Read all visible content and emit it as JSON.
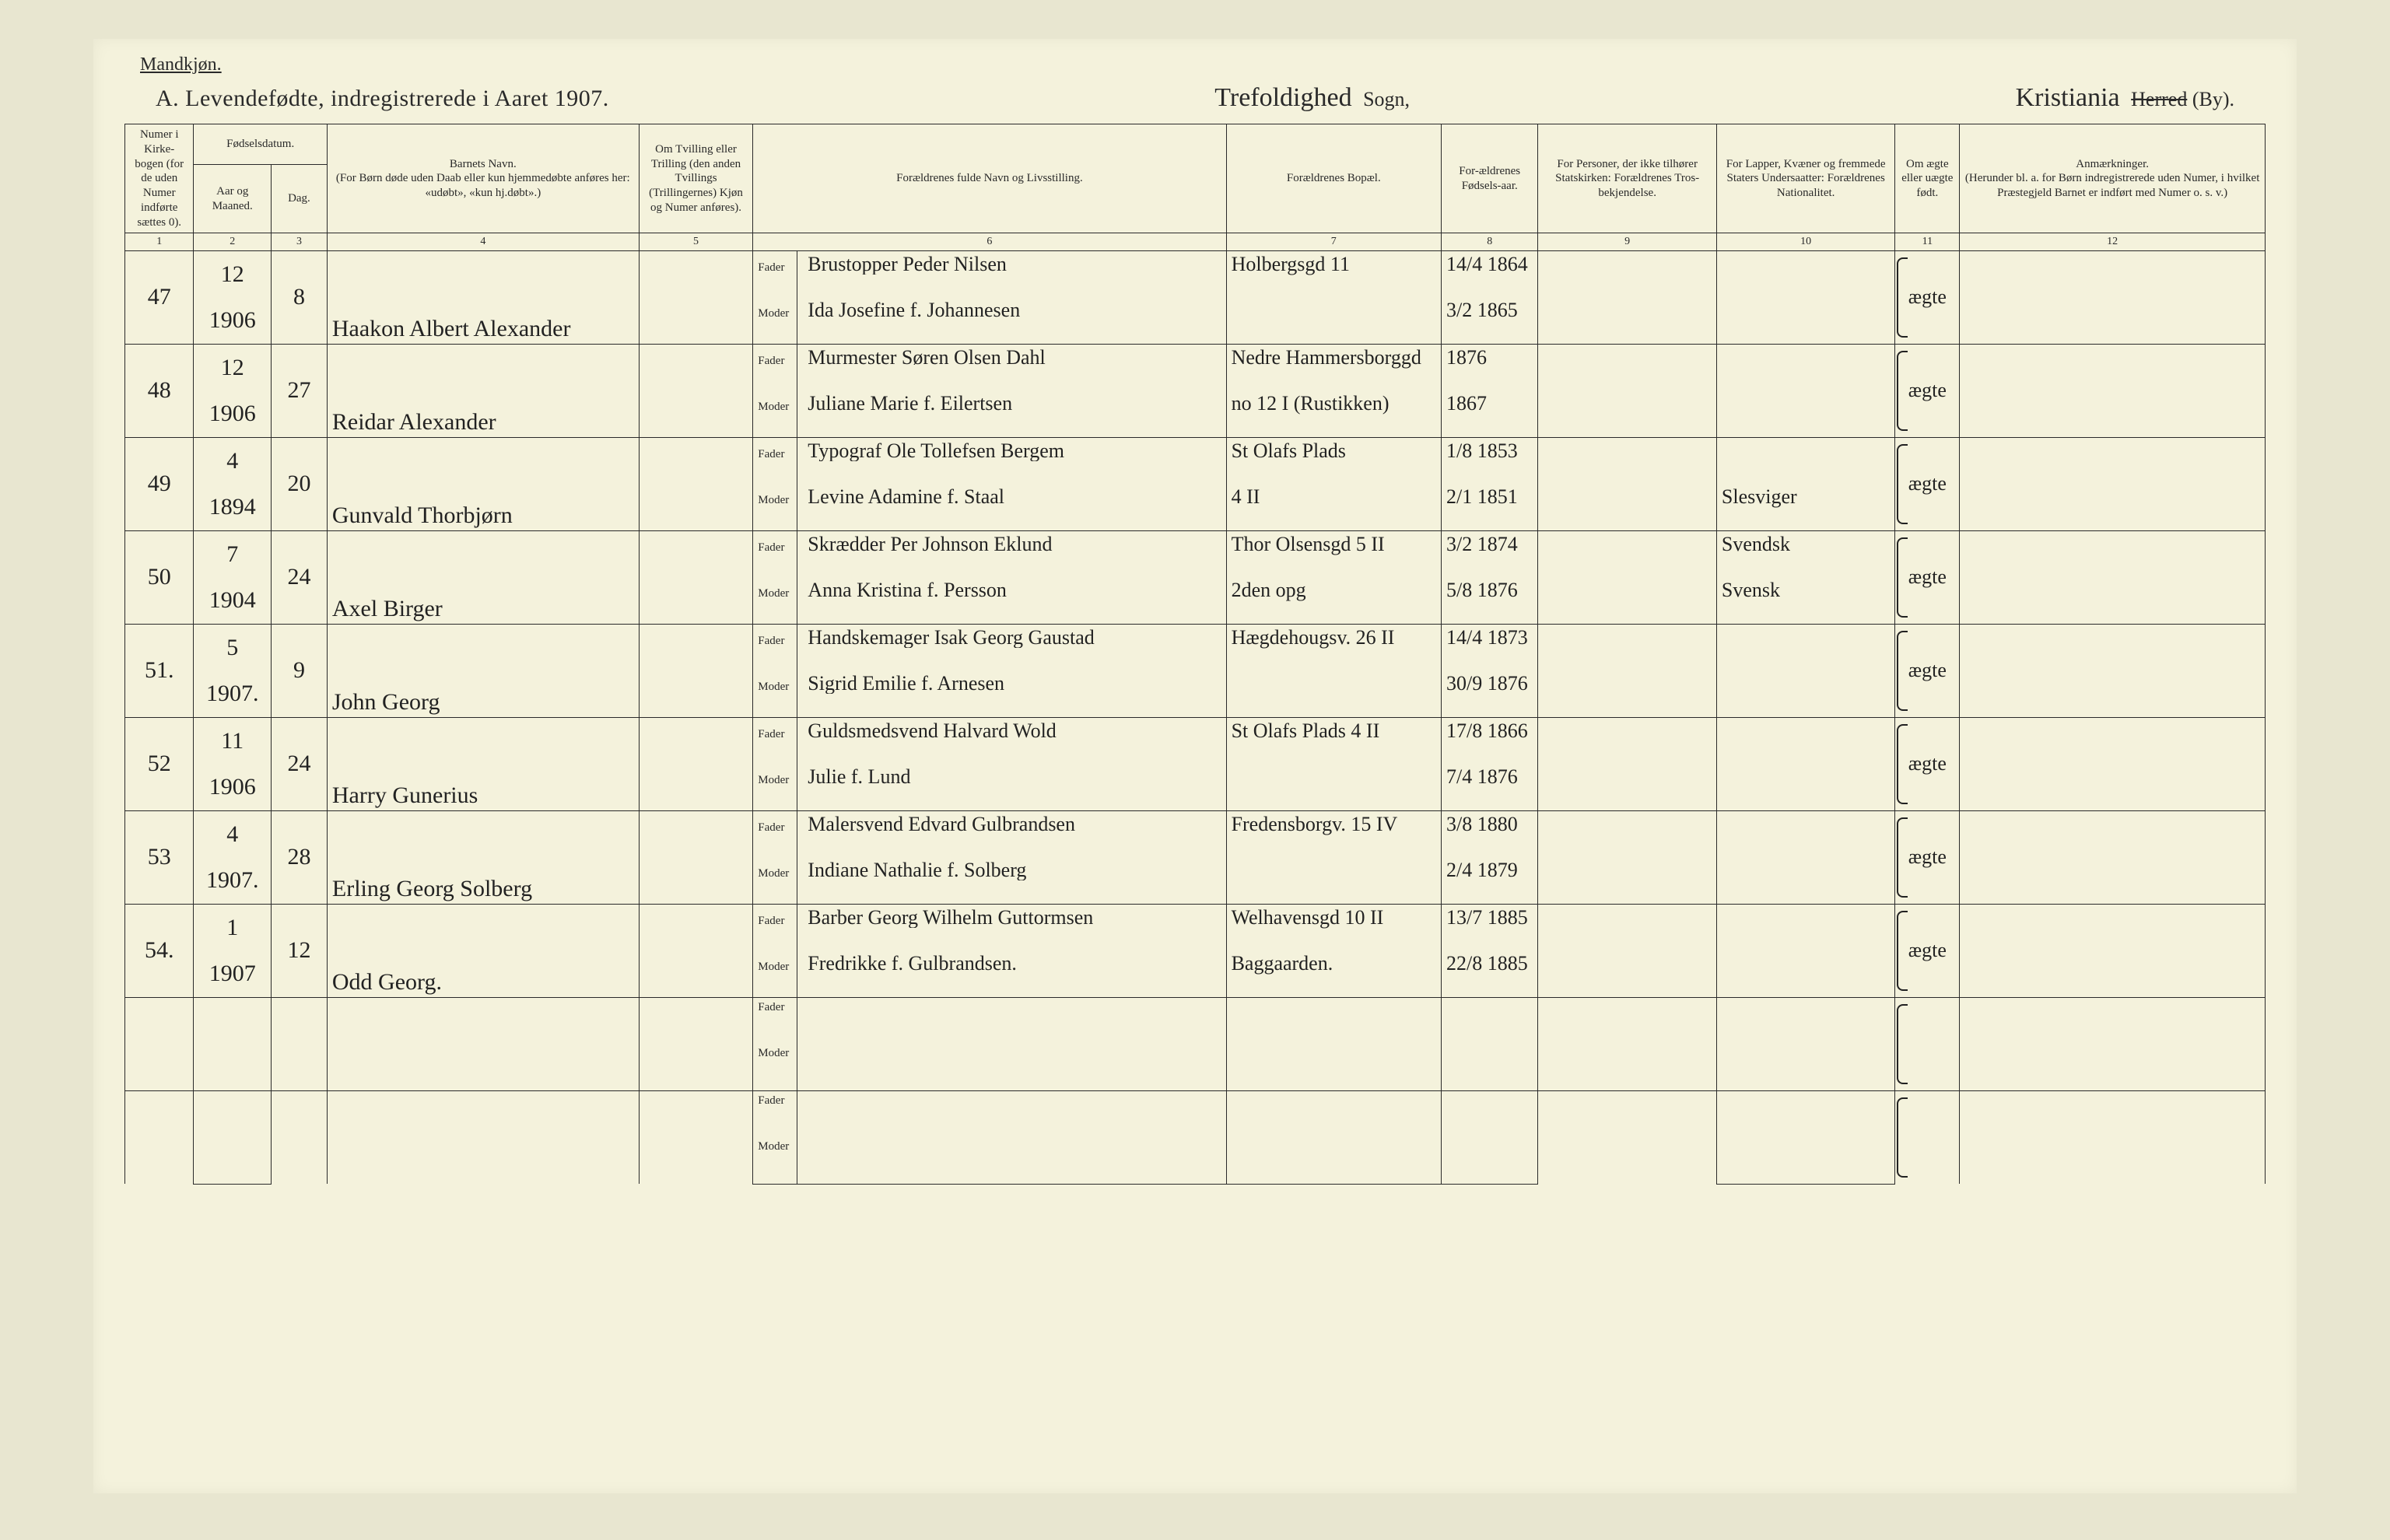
{
  "header": {
    "sex_label": "Mandkjøn.",
    "title_main": "A.  Levendefødte, indregistrerede i Aaret 1907.",
    "sogn_script": "Trefoldighed",
    "sogn_label": "Sogn,",
    "herred_script": "Kristiania",
    "herred_label_strike": "Herred",
    "herred_label_paren": "(By)."
  },
  "columns": {
    "c1": "Numer i Kirke-bogen (for de uden Numer indførte sættes 0).",
    "c2_top": "Fødselsdatum.",
    "c2a": "Aar og Maaned.",
    "c2b": "Dag.",
    "c4": "Barnets Navn.\n(For Børn døde uden Daab eller kun hjemmedøbte anføres her: «udøbt», «kun hj.døbt».)",
    "c5": "Om Tvilling eller Trilling (den anden Tvillings (Trillingernes) Kjøn og Numer anføres).",
    "c6": "Forældrenes fulde Navn og Livsstilling.",
    "c7": "Forældrenes Bopæl.",
    "c8": "For-ældrenes Fødsels-aar.",
    "c9": "For Personer, der ikke tilhører Statskirken: Forældrenes Tros-bekjendelse.",
    "c10": "For Lapper, Kvæner og fremmede Staters Undersaatter: Forældrenes Nationalitet.",
    "c11": "Om ægte eller uægte født.",
    "c12": "Anmærkninger.\n(Herunder bl. a. for Børn indregistrerede uden Numer, i hvilket Præstegjeld Barnet er indført med Numer o. s. v.)"
  },
  "colnums": [
    "1",
    "2",
    "3",
    "4",
    "5",
    "6",
    "7",
    "8",
    "9",
    "10",
    "11",
    "12"
  ],
  "labels": {
    "fader": "Fader",
    "moder": "Moder"
  },
  "rows": [
    {
      "num": "47",
      "ym_top": "12",
      "ym_bot": "1906",
      "day": "8",
      "child": "Haakon Albert Alexander",
      "fader": "Brustopper Peder Nilsen",
      "moder": "Ida Josefine f. Johannesen",
      "bopael_f": "Holbergsgd 11",
      "bopael_m": "",
      "aar_f": "14/4 1864",
      "aar_m": "3/2 1865",
      "nat_f": "",
      "nat_m": "",
      "aegte": "ægte"
    },
    {
      "num": "48",
      "ym_top": "12",
      "ym_bot": "1906",
      "day": "27",
      "child": "Reidar Alexander",
      "fader": "Murmester Søren Olsen Dahl",
      "moder": "Juliane Marie f. Eilertsen",
      "bopael_f": "Nedre Hammersborggd",
      "bopael_m": "no 12 I (Rustikken)",
      "aar_f": "1876",
      "aar_m": "1867",
      "nat_f": "",
      "nat_m": "",
      "aegte": "ægte"
    },
    {
      "num": "49",
      "ym_top": "4",
      "ym_bot": "1894",
      "day": "20",
      "child": "Gunvald Thorbjørn",
      "fader": "Typograf Ole Tollefsen Bergem",
      "moder": "Levine Adamine f. Staal",
      "bopael_f": "St Olafs Plads",
      "bopael_m": "4 II",
      "aar_f": "1/8 1853",
      "aar_m": "2/1 1851",
      "nat_f": "",
      "nat_m": "Slesviger",
      "aegte": "ægte"
    },
    {
      "num": "50",
      "ym_top": "7",
      "ym_bot": "1904",
      "day": "24",
      "child": "Axel Birger",
      "fader": "Skrædder Per Johnson Eklund",
      "moder": "Anna Kristina f. Persson",
      "bopael_f": "Thor Olsensgd 5 II",
      "bopael_m": "2den opg",
      "aar_f": "3/2 1874",
      "aar_m": "5/8 1876",
      "nat_f": "Svendsk",
      "nat_m": "Svensk",
      "aegte": "ægte"
    },
    {
      "num": "51.",
      "ym_top": "5",
      "ym_bot": "1907.",
      "day": "9",
      "child": "John Georg",
      "fader": "Handskemager Isak Georg Gaustad",
      "moder": "Sigrid Emilie f. Arnesen",
      "bopael_f": "Hægdehougsv. 26 II",
      "bopael_m": "",
      "aar_f": "14/4 1873",
      "aar_m": "30/9 1876",
      "nat_f": "",
      "nat_m": "",
      "aegte": "ægte"
    },
    {
      "num": "52",
      "ym_top": "11",
      "ym_bot": "1906",
      "day": "24",
      "child": "Harry Gunerius",
      "fader": "Guldsmedsvend Halvard Wold",
      "moder": "Julie f. Lund",
      "bopael_f": "St Olafs Plads 4 II",
      "bopael_m": "",
      "aar_f": "17/8 1866",
      "aar_m": "7/4 1876",
      "nat_f": "",
      "nat_m": "",
      "aegte": "ægte"
    },
    {
      "num": "53",
      "ym_top": "4",
      "ym_bot": "1907.",
      "day": "28",
      "child": "Erling Georg Solberg",
      "fader": "Malersvend Edvard Gulbrandsen",
      "moder": "Indiane Nathalie f. Solberg",
      "bopael_f": "Fredensborgv. 15 IV",
      "bopael_m": "",
      "aar_f": "3/8 1880",
      "aar_m": "2/4 1879",
      "nat_f": "",
      "nat_m": "",
      "aegte": "ægte"
    },
    {
      "num": "54.",
      "ym_top": "1",
      "ym_bot": "1907",
      "day": "12",
      "child": "Odd Georg.",
      "fader": "Barber Georg Wilhelm Guttormsen",
      "moder": "Fredrikke f. Gulbrandsen.",
      "bopael_f": "Welhavensgd 10 II",
      "bopael_m": "Baggaarden.",
      "aar_f": "13/7 1885",
      "aar_m": "22/8 1885",
      "nat_f": "",
      "nat_m": "",
      "aegte": "ægte"
    },
    {
      "num": "",
      "ym_top": "",
      "ym_bot": "",
      "day": "",
      "child": "",
      "fader": "",
      "moder": "",
      "bopael_f": "",
      "bopael_m": "",
      "aar_f": "",
      "aar_m": "",
      "nat_f": "",
      "nat_m": "",
      "aegte": ""
    },
    {
      "num": "",
      "ym_top": "",
      "ym_bot": "",
      "day": "",
      "child": "",
      "fader": "",
      "moder": "",
      "bopael_f": "",
      "bopael_m": "",
      "aar_f": "",
      "aar_m": "",
      "nat_f": "",
      "nat_m": "",
      "aegte": ""
    }
  ]
}
